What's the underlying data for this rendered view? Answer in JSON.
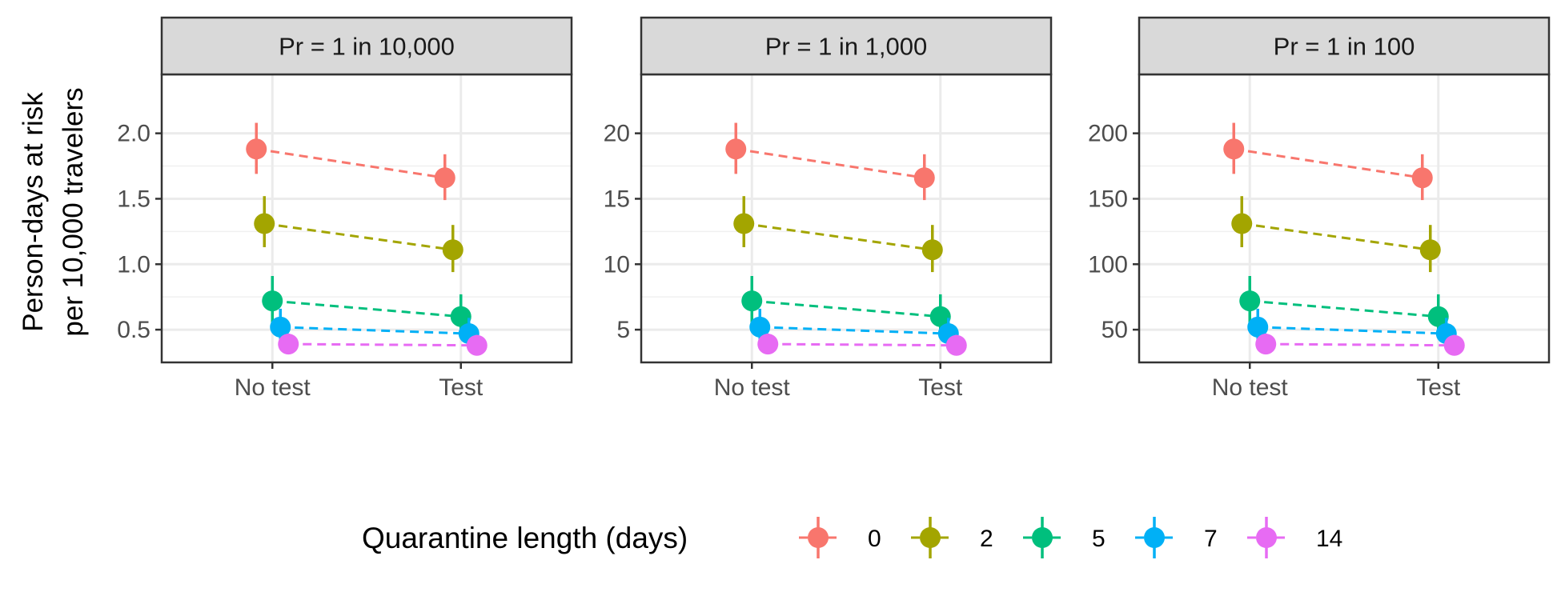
{
  "chart_data": {
    "type": "scatter",
    "ylabel_lines": [
      "Person-days at risk",
      "per 10,000 travelers"
    ],
    "xlabel": "",
    "categories": [
      "No test",
      "Test"
    ],
    "grid": true,
    "legend": {
      "title": "Quarantine length (days)",
      "placement": "bottom",
      "entries": [
        {
          "label": "0",
          "color": "#F8766D"
        },
        {
          "label": "2",
          "color": "#A3A500"
        },
        {
          "label": "5",
          "color": "#00BF7D"
        },
        {
          "label": "7",
          "color": "#00B0F6"
        },
        {
          "label": "14",
          "color": "#E76BF3"
        }
      ]
    },
    "panels": [
      {
        "strip": "Pr = 1 in 10,000",
        "ylim": [
          0.25,
          2.45
        ],
        "yticks": [
          0.5,
          1.0,
          1.5,
          2.0
        ],
        "ytick_labels": [
          "0.5",
          "1.0",
          "1.5",
          "2.0"
        ],
        "series": [
          {
            "name": "0",
            "values": [
              1.88,
              1.66
            ],
            "lower": [
              1.69,
              1.49
            ],
            "upper": [
              2.08,
              1.84
            ]
          },
          {
            "name": "2",
            "values": [
              1.31,
              1.11
            ],
            "lower": [
              1.13,
              0.94
            ],
            "upper": [
              1.52,
              1.3
            ]
          },
          {
            "name": "5",
            "values": [
              0.72,
              0.6
            ],
            "lower": [
              0.55,
              0.46
            ],
            "upper": [
              0.91,
              0.77
            ]
          },
          {
            "name": "7",
            "values": [
              0.52,
              0.47
            ],
            "lower": [
              0.4,
              0.37
            ],
            "upper": [
              0.66,
              0.59
            ]
          },
          {
            "name": "14",
            "values": [
              0.39,
              0.38
            ],
            "lower": [
              0.32,
              0.31
            ],
            "upper": [
              0.47,
              0.46
            ]
          }
        ]
      },
      {
        "strip": "Pr = 1 in 1,000",
        "ylim": [
          2.5,
          24.5
        ],
        "yticks": [
          5,
          10,
          15,
          20
        ],
        "ytick_labels": [
          "5",
          "10",
          "15",
          "20"
        ],
        "series": [
          {
            "name": "0",
            "values": [
              18.8,
              16.6
            ],
            "lower": [
              16.9,
              14.9
            ],
            "upper": [
              20.8,
              18.4
            ]
          },
          {
            "name": "2",
            "values": [
              13.1,
              11.1
            ],
            "lower": [
              11.3,
              9.4
            ],
            "upper": [
              15.2,
              13.0
            ]
          },
          {
            "name": "5",
            "values": [
              7.2,
              6.0
            ],
            "lower": [
              5.5,
              4.6
            ],
            "upper": [
              9.1,
              7.7
            ]
          },
          {
            "name": "7",
            "values": [
              5.2,
              4.7
            ],
            "lower": [
              4.0,
              3.7
            ],
            "upper": [
              6.6,
              5.9
            ]
          },
          {
            "name": "14",
            "values": [
              3.9,
              3.8
            ],
            "lower": [
              3.2,
              3.1
            ],
            "upper": [
              4.7,
              4.6
            ]
          }
        ]
      },
      {
        "strip": "Pr = 1 in 100",
        "ylim": [
          25,
          245
        ],
        "yticks": [
          50,
          100,
          150,
          200
        ],
        "ytick_labels": [
          "50",
          "100",
          "150",
          "200"
        ],
        "series": [
          {
            "name": "0",
            "values": [
              188,
              166
            ],
            "lower": [
              169,
              149
            ],
            "upper": [
              208,
              184
            ]
          },
          {
            "name": "2",
            "values": [
              131,
              111
            ],
            "lower": [
              113,
              94
            ],
            "upper": [
              152,
              130
            ]
          },
          {
            "name": "5",
            "values": [
              72,
              60
            ],
            "lower": [
              55,
              46
            ],
            "upper": [
              91,
              77
            ]
          },
          {
            "name": "7",
            "values": [
              52,
              47
            ],
            "lower": [
              40,
              37
            ],
            "upper": [
              66,
              59
            ]
          },
          {
            "name": "14",
            "values": [
              39,
              38
            ],
            "lower": [
              32,
              31
            ],
            "upper": [
              47,
              46
            ]
          }
        ]
      }
    ]
  }
}
